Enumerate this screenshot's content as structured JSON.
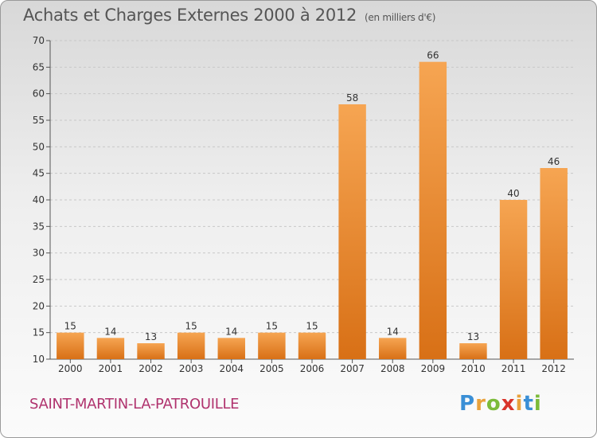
{
  "header": {
    "title": "Achats et Charges Externes 2000 à 2012",
    "unit": "(en milliers d'€)"
  },
  "footer": {
    "commune": "SAINT-MARTIN-LA-PATROUILLE",
    "brand_letters": [
      {
        "ch": "P",
        "color": "#3a8fd6"
      },
      {
        "ch": "r",
        "color": "#e9a23b"
      },
      {
        "ch": "o",
        "color": "#7cbb3a"
      },
      {
        "ch": "x",
        "color": "#d9342b"
      },
      {
        "ch": "i",
        "color": "#e9a23b"
      },
      {
        "ch": "t",
        "color": "#3a8fd6"
      },
      {
        "ch": "i",
        "color": "#7cbb3a"
      }
    ]
  },
  "chart_data": {
    "type": "bar",
    "categories": [
      "2000",
      "2001",
      "2002",
      "2003",
      "2004",
      "2005",
      "2006",
      "2007",
      "2008",
      "2009",
      "2010",
      "2011",
      "2012"
    ],
    "values": [
      15,
      14,
      13,
      15,
      14,
      15,
      15,
      58,
      14,
      66,
      13,
      40,
      46
    ],
    "ylim": [
      10,
      70
    ],
    "yticks": [
      10,
      15,
      20,
      25,
      30,
      35,
      40,
      45,
      50,
      55,
      60,
      65,
      70
    ],
    "grid": true,
    "bar_color_top": "#f6a552",
    "bar_color_bottom": "#d87016"
  }
}
